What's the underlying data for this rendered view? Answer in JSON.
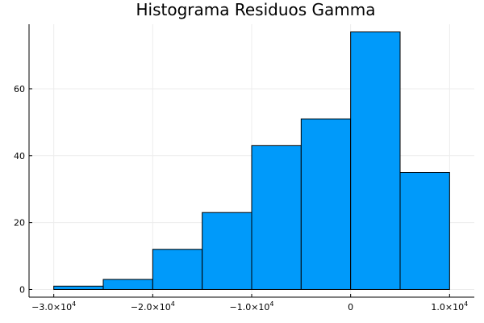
{
  "chart_data": {
    "type": "histogram",
    "title": "Histograma Residuos Gamma",
    "xlabel": "",
    "ylabel": "",
    "bins": [
      {
        "x0": -30000,
        "x1": -25000,
        "count": 1
      },
      {
        "x0": -25000,
        "x1": -20000,
        "count": 3
      },
      {
        "x0": -20000,
        "x1": -15000,
        "count": 12
      },
      {
        "x0": -15000,
        "x1": -10000,
        "count": 23
      },
      {
        "x0": -10000,
        "x1": -5000,
        "count": 43
      },
      {
        "x0": -5000,
        "x1": 0,
        "count": 51
      },
      {
        "x0": 0,
        "x1": 5000,
        "count": 77
      },
      {
        "x0": 5000,
        "x1": 10000,
        "count": 35
      }
    ],
    "xlim": [
      -32500,
      12500
    ],
    "ylim": [
      -2.3,
      79.3
    ],
    "xticks": [
      {
        "value": -30000,
        "mant": "−3.0×10",
        "exp": "4"
      },
      {
        "value": -20000,
        "mant": "−2.0×10",
        "exp": "4"
      },
      {
        "value": -10000,
        "mant": "−1.0×10",
        "exp": "4"
      },
      {
        "value": 0,
        "mant": "0",
        "exp": ""
      },
      {
        "value": 10000,
        "mant": "1.0×10",
        "exp": "4"
      }
    ],
    "yticks": [
      {
        "value": 0,
        "label": "0"
      },
      {
        "value": 20,
        "label": "20"
      },
      {
        "value": 40,
        "label": "40"
      },
      {
        "value": 60,
        "label": "60"
      }
    ],
    "grid": true,
    "legend": "none",
    "colors": {
      "bar_fill": "#009AFA",
      "bar_stroke": "#000000",
      "grid": "#ececec",
      "axis": "#000000"
    }
  }
}
